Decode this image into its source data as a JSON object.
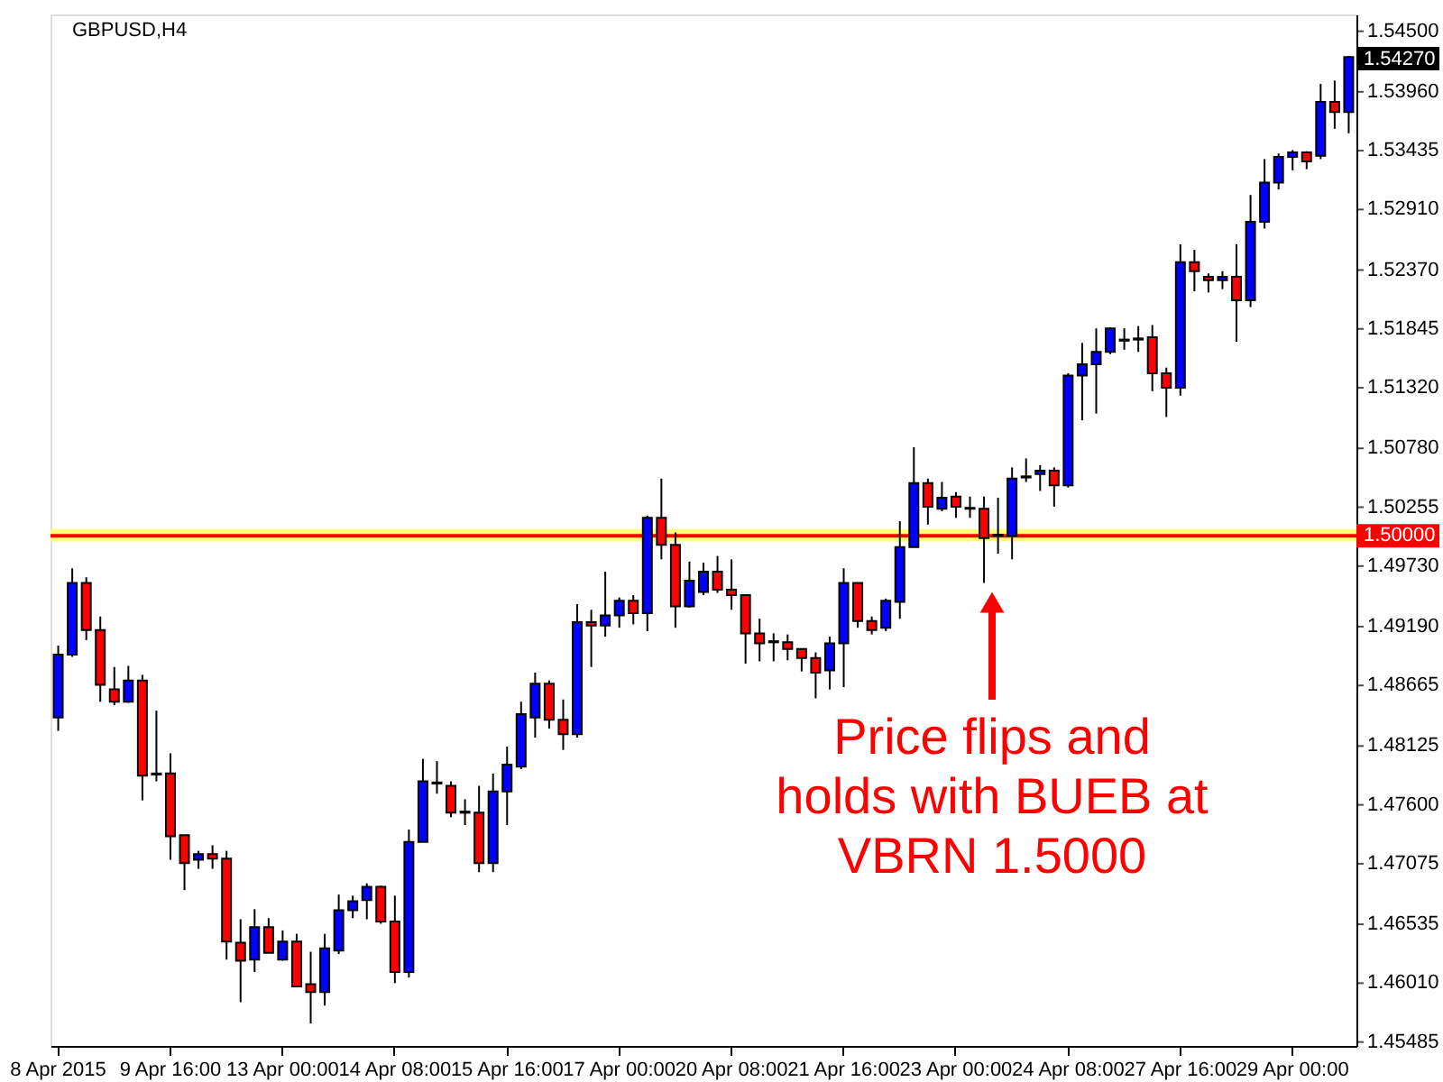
{
  "chart_data": {
    "type": "candlestick",
    "title": "GBPUSD,H4",
    "categories": [
      "8 Apr 2015",
      null,
      null,
      null,
      null,
      null,
      null,
      null,
      "9 Apr 16:00",
      null,
      null,
      null,
      null,
      null,
      null,
      null,
      "13 Apr 00:00",
      null,
      null,
      null,
      null,
      null,
      null,
      null,
      "14 Apr 08:00",
      null,
      null,
      null,
      null,
      null,
      null,
      null,
      "15 Apr 16:00",
      null,
      null,
      null,
      null,
      null,
      null,
      null,
      "17 Apr 00:00",
      null,
      null,
      null,
      null,
      null,
      null,
      null,
      "20 Apr 08:00",
      null,
      null,
      null,
      null,
      null,
      null,
      null,
      "21 Apr 16:00",
      null,
      null,
      null,
      null,
      null,
      null,
      null,
      "23 Apr 00:00",
      null,
      null,
      null,
      null,
      null,
      null,
      null,
      "24 Apr 08:00",
      null,
      null,
      null,
      null,
      null,
      null,
      null,
      "27 Apr 16:00",
      null,
      null,
      null,
      null,
      null,
      null,
      null,
      "29 Apr 00:00",
      null,
      null,
      null,
      null
    ],
    "ohlc": [
      [
        1.4838,
        1.4902,
        1.4826,
        1.4894
      ],
      [
        1.4894,
        1.4971,
        1.4892,
        1.4958
      ],
      [
        1.4958,
        1.4963,
        1.4907,
        1.4916
      ],
      [
        1.4916,
        1.4928,
        1.4852,
        1.4867
      ],
      [
        1.4863,
        1.4883,
        1.4849,
        1.4852
      ],
      [
        1.4852,
        1.4884,
        1.4851,
        1.4871
      ],
      [
        1.4871,
        1.4876,
        1.4764,
        1.4786
      ],
      [
        1.4787,
        1.4844,
        1.4781,
        1.4788
      ],
      [
        1.4788,
        1.4806,
        1.4711,
        1.4732
      ],
      [
        1.4733,
        1.4733,
        1.4684,
        1.4708
      ],
      [
        1.4711,
        1.4719,
        1.4703,
        1.4716
      ],
      [
        1.4716,
        1.4724,
        1.4703,
        1.4712
      ],
      [
        1.4712,
        1.4719,
        1.4622,
        1.4638
      ],
      [
        1.4637,
        1.4658,
        1.4584,
        1.4621
      ],
      [
        1.4622,
        1.4667,
        1.4611,
        1.4651
      ],
      [
        1.4651,
        1.4659,
        1.4628,
        1.4628
      ],
      [
        1.4622,
        1.4648,
        1.4621,
        1.4638
      ],
      [
        1.4638,
        1.4645,
        1.4598,
        1.4598
      ],
      [
        1.46,
        1.4629,
        1.4565,
        1.4593
      ],
      [
        1.4593,
        1.4645,
        1.4581,
        1.4632
      ],
      [
        1.463,
        1.468,
        1.4627,
        1.4666
      ],
      [
        1.4666,
        1.4679,
        1.4659,
        1.4674
      ],
      [
        1.4675,
        1.469,
        1.4658,
        1.4687
      ],
      [
        1.4687,
        1.4688,
        1.4654,
        1.4656
      ],
      [
        1.4656,
        1.4679,
        1.4601,
        1.4611
      ],
      [
        1.4611,
        1.4738,
        1.4606,
        1.4727
      ],
      [
        1.4727,
        1.4801,
        1.4727,
        1.4781
      ],
      [
        1.4779,
        1.4799,
        1.477,
        1.478
      ],
      [
        1.4777,
        1.4781,
        1.4749,
        1.4753
      ],
      [
        1.4754,
        1.4765,
        1.4742,
        1.4753
      ],
      [
        1.4753,
        1.4777,
        1.47,
        1.4708
      ],
      [
        1.4708,
        1.4788,
        1.47,
        1.4772
      ],
      [
        1.4772,
        1.4812,
        1.4742,
        1.4796
      ],
      [
        1.4794,
        1.4852,
        1.4792,
        1.4841
      ],
      [
        1.4838,
        1.4878,
        1.482,
        1.4868
      ],
      [
        1.4868,
        1.4871,
        1.4828,
        1.4836
      ],
      [
        1.4836,
        1.4854,
        1.4809,
        1.4823
      ],
      [
        1.4823,
        1.4939,
        1.482,
        1.4923
      ],
      [
        1.4923,
        1.4934,
        1.4883,
        1.492
      ],
      [
        1.492,
        1.4968,
        1.491,
        1.4929
      ],
      [
        1.4929,
        1.4945,
        1.4918,
        1.4942
      ],
      [
        1.4942,
        1.4947,
        1.4921,
        1.4931
      ],
      [
        1.4931,
        1.5018,
        1.4915,
        1.5016
      ],
      [
        1.5016,
        1.5051,
        1.4979,
        1.4992
      ],
      [
        1.4992,
        1.5003,
        1.4918,
        1.4937
      ],
      [
        1.4937,
        1.4977,
        1.4936,
        1.496
      ],
      [
        1.495,
        1.4976,
        1.4947,
        1.4968
      ],
      [
        1.4968,
        1.4982,
        1.4949,
        1.4952
      ],
      [
        1.4952,
        1.4979,
        1.4934,
        1.4947
      ],
      [
        1.4947,
        1.4947,
        1.4886,
        1.4913
      ],
      [
        1.4913,
        1.4926,
        1.4888,
        1.4904
      ],
      [
        1.4906,
        1.4913,
        1.4888,
        1.4905
      ],
      [
        1.4905,
        1.4912,
        1.4889,
        1.4899
      ],
      [
        1.4899,
        1.4899,
        1.4879,
        1.4891
      ],
      [
        1.4891,
        1.4896,
        1.4855,
        1.4878
      ],
      [
        1.488,
        1.491,
        1.4863,
        1.4904
      ],
      [
        1.4904,
        1.4971,
        1.4865,
        1.4958
      ],
      [
        1.4958,
        1.4958,
        1.4918,
        1.4924
      ],
      [
        1.4924,
        1.4928,
        1.4912,
        1.4916
      ],
      [
        1.4918,
        1.4944,
        1.4915,
        1.4942
      ],
      [
        1.4941,
        1.5013,
        1.4926,
        1.499
      ],
      [
        1.499,
        1.5079,
        1.499,
        1.5047
      ],
      [
        1.5047,
        1.5051,
        1.501,
        1.5026
      ],
      [
        1.5024,
        1.5048,
        1.5022,
        1.5034
      ],
      [
        1.5035,
        1.5039,
        1.5016,
        1.5026
      ],
      [
        1.5025,
        1.5035,
        1.5016,
        1.5024
      ],
      [
        1.5024,
        1.5035,
        1.4958,
        1.4998
      ],
      [
        1.5001,
        1.5034,
        1.4984,
        1.5
      ],
      [
        1.5,
        1.5061,
        1.4979,
        1.5051
      ],
      [
        1.5052,
        1.5069,
        1.5048,
        1.5053
      ],
      [
        1.5055,
        1.5063,
        1.504,
        1.5058
      ],
      [
        1.5058,
        1.5061,
        1.5026,
        1.5045
      ],
      [
        1.5045,
        1.5145,
        1.5043,
        1.5143
      ],
      [
        1.5143,
        1.5172,
        1.5103,
        1.5153
      ],
      [
        1.5153,
        1.5185,
        1.5109,
        1.5164
      ],
      [
        1.5164,
        1.5186,
        1.5162,
        1.5185
      ],
      [
        1.5174,
        1.5185,
        1.5166,
        1.5175
      ],
      [
        1.5175,
        1.5187,
        1.5164,
        1.5176
      ],
      [
        1.5177,
        1.5188,
        1.5129,
        1.5145
      ],
      [
        1.5145,
        1.515,
        1.5106,
        1.5132
      ],
      [
        1.5132,
        1.526,
        1.5125,
        1.5244
      ],
      [
        1.5244,
        1.5255,
        1.5218,
        1.5236
      ],
      [
        1.5231,
        1.5234,
        1.5217,
        1.5228
      ],
      [
        1.5228,
        1.5236,
        1.522,
        1.5231
      ],
      [
        1.5231,
        1.526,
        1.5173,
        1.521
      ],
      [
        1.521,
        1.5304,
        1.5204,
        1.528
      ],
      [
        1.528,
        1.5336,
        1.5274,
        1.5315
      ],
      [
        1.5315,
        1.5341,
        1.5309,
        1.5338
      ],
      [
        1.5338,
        1.5344,
        1.5326,
        1.5342
      ],
      [
        1.5342,
        1.5343,
        1.5327,
        1.5334
      ],
      [
        1.5339,
        1.5403,
        1.5336,
        1.5387
      ],
      [
        1.5387,
        1.5406,
        1.5363,
        1.5378
      ],
      [
        1.5378,
        1.5428,
        1.5359,
        1.5427
      ]
    ],
    "colors": [
      "#0000ff",
      "#0000ff",
      "#ff0000",
      "#ff0000",
      "#ff0000",
      "#0000ff",
      "#ff0000",
      "#000000",
      "#ff0000",
      "#ff0000",
      "#0000ff",
      "#ff0000",
      "#ff0000",
      "#ff0000",
      "#0000ff",
      "#ff0000",
      "#0000ff",
      "#ff0000",
      "#ff0000",
      "#0000ff",
      "#0000ff",
      "#0000ff",
      "#0000ff",
      "#ff0000",
      "#ff0000",
      "#0000ff",
      "#0000ff",
      "#000000",
      "#ff0000",
      "#000000",
      "#ff0000",
      "#0000ff",
      "#0000ff",
      "#0000ff",
      "#0000ff",
      "#ff0000",
      "#ff0000",
      "#0000ff",
      "#ff0000",
      "#0000ff",
      "#0000ff",
      "#ff0000",
      "#0000ff",
      "#ff0000",
      "#ff0000",
      "#0000ff",
      "#0000ff",
      "#ff0000",
      "#ff0000",
      "#ff0000",
      "#ff0000",
      "#000000",
      "#ff0000",
      "#ff0000",
      "#ff0000",
      "#0000ff",
      "#0000ff",
      "#ff0000",
      "#ff0000",
      "#0000ff",
      "#0000ff",
      "#0000ff",
      "#ff0000",
      "#0000ff",
      "#ff0000",
      "#000000",
      "#ff0000",
      "#000000",
      "#0000ff",
      "#000000",
      "#0000ff",
      "#ff0000",
      "#0000ff",
      "#0000ff",
      "#0000ff",
      "#0000ff",
      "#000000",
      "#000000",
      "#ff0000",
      "#ff0000",
      "#0000ff",
      "#ff0000",
      "#ff0000",
      "#0000ff",
      "#ff0000",
      "#0000ff",
      "#0000ff",
      "#0000ff",
      "#0000ff",
      "#ff0000",
      "#0000ff",
      "#ff0000",
      "#0000ff"
    ],
    "ylim": [
      1.4545,
      1.5465
    ],
    "yticks": [
      {
        "value": 1.545,
        "label": "1.54500"
      },
      {
        "value": 1.5396,
        "label": "1.53960"
      },
      {
        "value": 1.53435,
        "label": "1.53435"
      },
      {
        "value": 1.5291,
        "label": "1.52910"
      },
      {
        "value": 1.5237,
        "label": "1.52370"
      },
      {
        "value": 1.51845,
        "label": "1.51845"
      },
      {
        "value": 1.5132,
        "label": "1.51320"
      },
      {
        "value": 1.5078,
        "label": "1.50780"
      },
      {
        "value": 1.50255,
        "label": "1.50255"
      },
      {
        "value": 1.4973,
        "label": "1.49730"
      },
      {
        "value": 1.4919,
        "label": "1.49190"
      },
      {
        "value": 1.48665,
        "label": "1.48665"
      },
      {
        "value": 1.48125,
        "label": "1.48125"
      },
      {
        "value": 1.476,
        "label": "1.47600"
      },
      {
        "value": 1.47075,
        "label": "1.47075"
      },
      {
        "value": 1.46535,
        "label": "1.46535"
      },
      {
        "value": 1.4601,
        "label": "1.46010"
      },
      {
        "value": 1.45485,
        "label": "1.45485"
      }
    ],
    "ref_lines": [
      {
        "axis": "y",
        "value": 1.5,
        "label": "1.50000",
        "color": "#ff0000"
      }
    ],
    "bands": [
      {
        "axis": "y",
        "from": 1.4995,
        "to": 1.5006,
        "color": "#ffff66"
      }
    ],
    "annotations": [
      "1.54270",
      "Price flips and holds with BUEB at VBRN 1.5000"
    ],
    "grid": false
  }
}
